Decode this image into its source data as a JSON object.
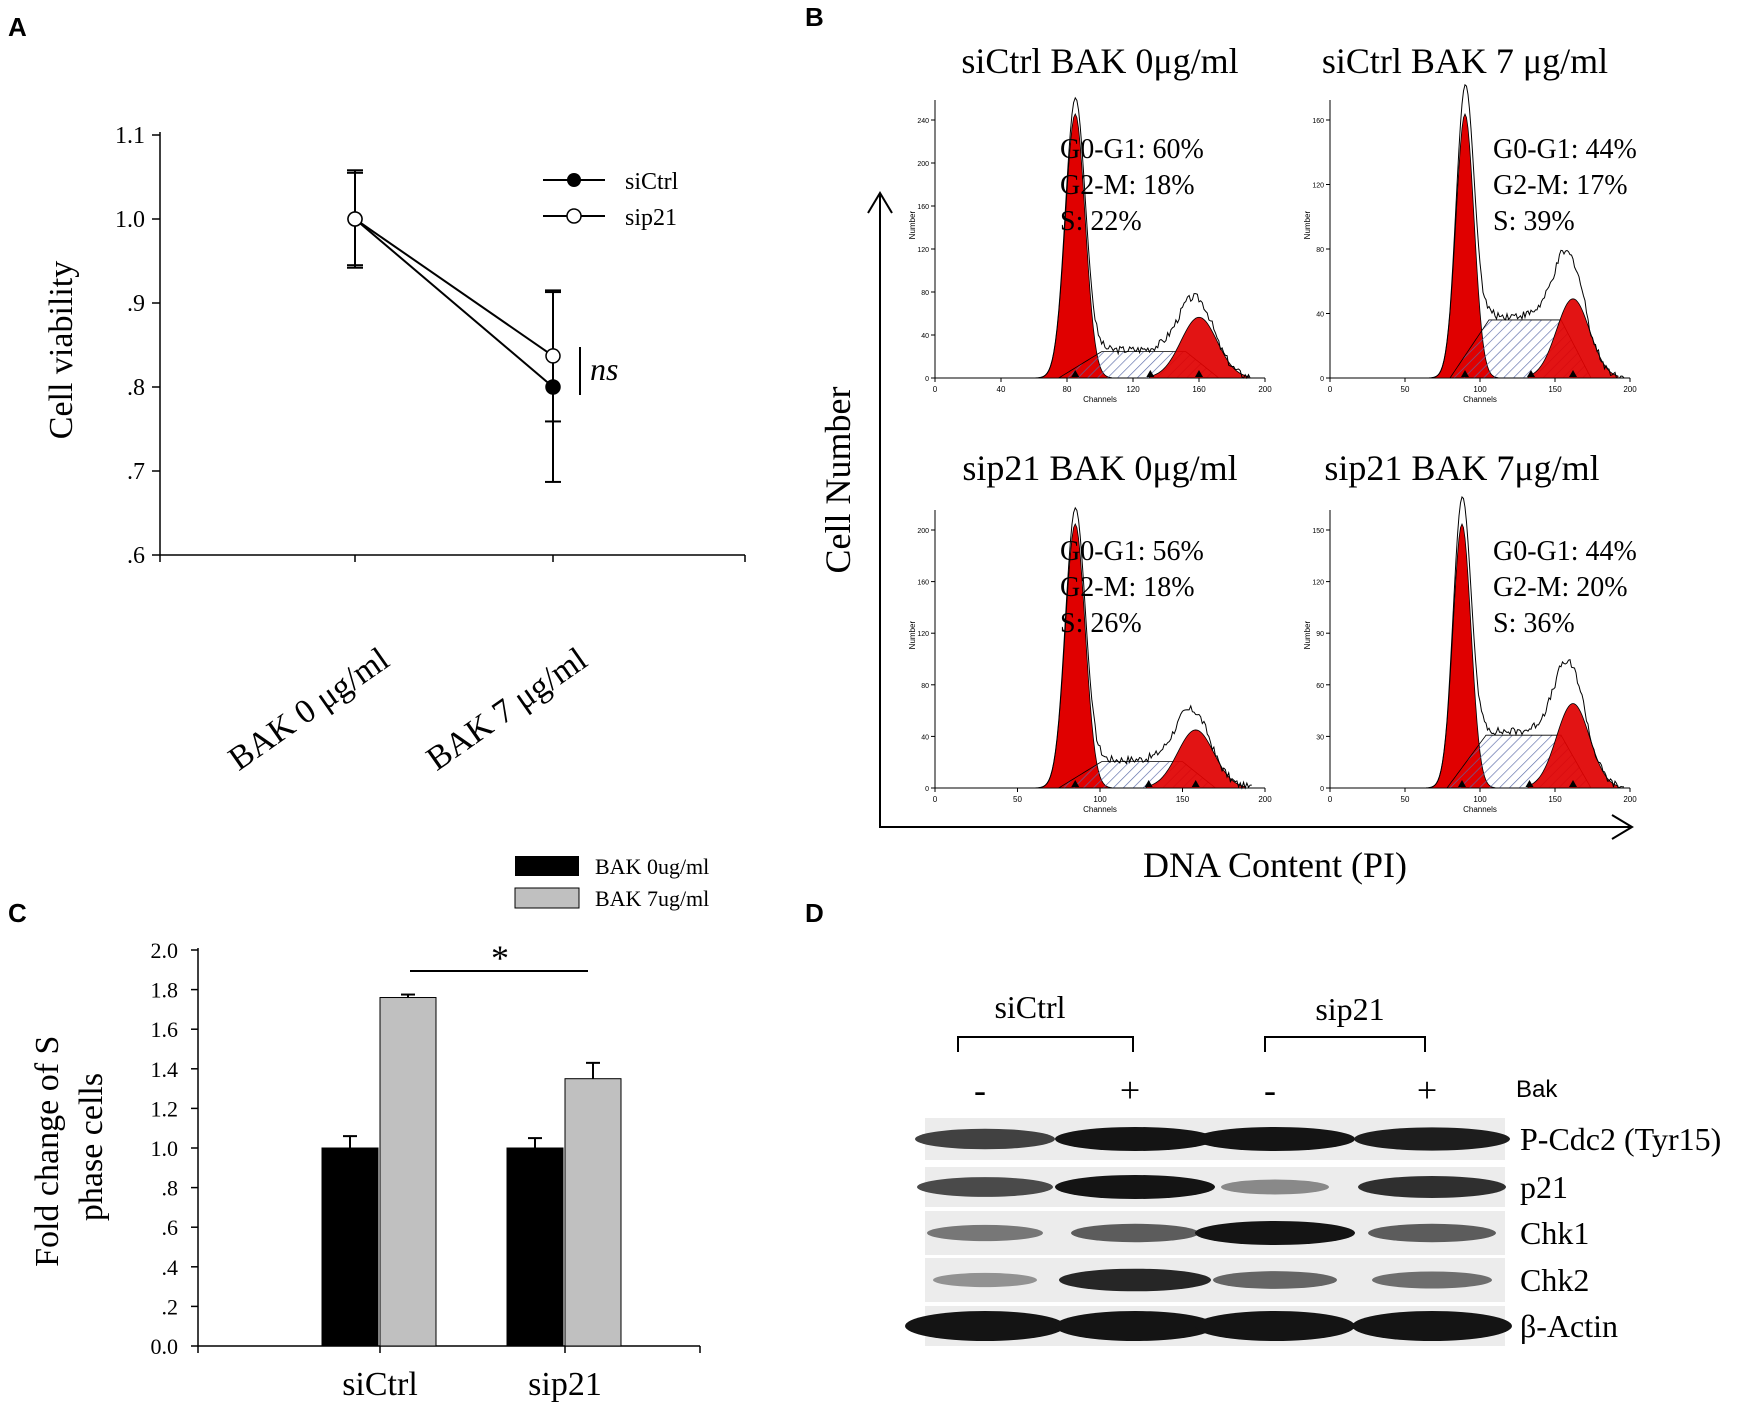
{
  "panel_labels": {
    "a": "A",
    "b": "B",
    "c": "C",
    "d": "D"
  },
  "colors": {
    "black": "#000000",
    "gray": "#c0c0c0",
    "red": "#e00000",
    "blot": "#141414"
  },
  "chart_data": [
    {
      "id": "A",
      "type": "line",
      "ylabel": "Cell viability",
      "categories": [
        "BAK 0 μg/ml",
        "BAK 7 μg/ml"
      ],
      "yticks": [
        {
          "v": 0.6,
          "t": ".6"
        },
        {
          "v": 0.7,
          "t": ".7"
        },
        {
          "v": 0.8,
          "t": ".8"
        },
        {
          "v": 0.9,
          "t": ".9"
        },
        {
          "v": 1.0,
          "t": "1.0"
        },
        {
          "v": 1.1,
          "t": "1.1"
        }
      ],
      "ylim": [
        0.6,
        1.1
      ],
      "series": [
        {
          "name": "siCtrl",
          "marker": "filled",
          "values": [
            1.0,
            0.8
          ],
          "errors": [
            0.055,
            0.113
          ]
        },
        {
          "name": "sip21",
          "marker": "open",
          "values": [
            1.0,
            0.837
          ],
          "errors": [
            0.058,
            0.078
          ]
        }
      ],
      "annotation": "ns"
    },
    {
      "id": "B",
      "type": "histogram",
      "xlabel": "DNA Content (PI)",
      "ylabel": "Cell Number",
      "axis_small": {
        "x": "Channels",
        "y": "Number"
      },
      "plots": [
        {
          "title": "siCtrl BAK 0μg/ml",
          "stats": [
            "G0-G1: 60%",
            "G2-M: 18%",
            "S: 22%"
          ],
          "xticks": [
            "0",
            "40",
            "80",
            "120",
            "160",
            "200"
          ],
          "yticks": [
            "0",
            "40",
            "80",
            "120",
            "160",
            "200",
            "240"
          ],
          "g1": 85,
          "g2": 160,
          "g1h": 1.0,
          "g2h": 0.23,
          "s": 0.1
        },
        {
          "title": "siCtrl BAK 7 μg/ml",
          "stats": [
            "G0-G1: 44%",
            "G2-M: 17%",
            "S: 39%"
          ],
          "xticks": [
            "0",
            "50",
            "100",
            "150",
            "200"
          ],
          "yticks": [
            "0",
            "40",
            "80",
            "120",
            "160"
          ],
          "g1": 90,
          "g2": 162,
          "g1h": 1.0,
          "g2h": 0.3,
          "s": 0.22
        },
        {
          "title": "sip21 BAK 0μg/ml",
          "stats": [
            "G0-G1: 56%",
            "G2-M: 18%",
            "S: 26%"
          ],
          "xticks": [
            "0",
            "50",
            "100",
            "150",
            "200"
          ],
          "yticks": [
            "0",
            "40",
            "80",
            "120",
            "160",
            "200"
          ],
          "g1": 85,
          "g2": 158,
          "g1h": 1.0,
          "g2h": 0.22,
          "s": 0.1
        },
        {
          "title": "sip21 BAK 7μg/ml",
          "stats": [
            "G0-G1: 44%",
            "G2-M: 20%",
            "S: 36%"
          ],
          "xticks": [
            "0",
            "50",
            "100",
            "150",
            "200"
          ],
          "yticks": [
            "0",
            "30",
            "60",
            "90",
            "120",
            "150"
          ],
          "g1": 88,
          "g2": 162,
          "g1h": 1.0,
          "g2h": 0.32,
          "s": 0.2
        }
      ]
    },
    {
      "id": "C",
      "type": "bar",
      "ylabel": "Fold change of S\nphase cells",
      "categories": [
        "siCtrl",
        "sip21"
      ],
      "ylim": [
        0,
        2
      ],
      "yticks": [
        {
          "v": 0,
          "t": "0.0"
        },
        {
          "v": 0.2,
          "t": ".2"
        },
        {
          "v": 0.4,
          "t": ".4"
        },
        {
          "v": 0.6,
          "t": ".6"
        },
        {
          "v": 0.8,
          "t": ".8"
        },
        {
          "v": 1.0,
          "t": "1.0"
        },
        {
          "v": 1.2,
          "t": "1.2"
        },
        {
          "v": 1.4,
          "t": "1.4"
        },
        {
          "v": 1.6,
          "t": "1.6"
        },
        {
          "v": 1.8,
          "t": "1.8"
        },
        {
          "v": 2.0,
          "t": "2.0"
        }
      ],
      "series": [
        {
          "name": "BAK 0ug/ml",
          "color": "#000000",
          "values": [
            1.0,
            1.0
          ],
          "errors": [
            0.06,
            0.05
          ]
        },
        {
          "name": "BAK 7ug/ml",
          "color": "#c0c0c0",
          "values": [
            1.76,
            1.35
          ],
          "errors": [
            0.015,
            0.08
          ]
        }
      ],
      "significance": "*"
    },
    {
      "id": "D",
      "type": "table",
      "groups": [
        "siCtrl",
        "sip21"
      ],
      "treatment_label": "Bak",
      "lanes": [
        "-",
        "+",
        "-",
        "+"
      ],
      "rows": [
        {
          "name": "P-Cdc2 (Tyr15)",
          "intensity": [
            0.75,
            1.0,
            1.0,
            0.95
          ]
        },
        {
          "name": "p21",
          "intensity": [
            0.7,
            1.0,
            0.35,
            0.85
          ]
        },
        {
          "name": "Chk1",
          "intensity": [
            0.45,
            0.6,
            1.0,
            0.6
          ]
        },
        {
          "name": "Chk2",
          "intensity": [
            0.3,
            0.9,
            0.55,
            0.5
          ]
        },
        {
          "name": "β-Actin",
          "intensity": [
            1.0,
            1.0,
            1.0,
            1.0
          ]
        }
      ]
    }
  ]
}
